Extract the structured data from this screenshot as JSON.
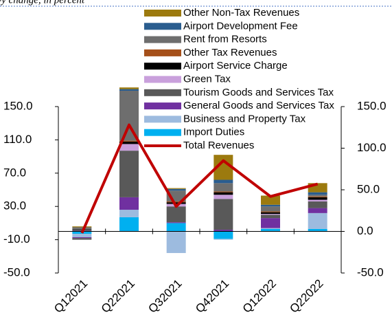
{
  "chart_data": {
    "type": "bar",
    "stacked": true,
    "subtitle": "y-o-y change, in percent",
    "categories": [
      "Q12021",
      "Q22021",
      "Q32021",
      "Q42021",
      "Q12022",
      "Q22022"
    ],
    "series": [
      {
        "name": "Import Duties",
        "color": "#00b0f0",
        "values": [
          -3,
          17,
          10,
          -9,
          3,
          3
        ]
      },
      {
        "name": "Business and Property Tax",
        "color": "#9dbbdf",
        "values": [
          -4,
          9,
          -26,
          -1,
          1,
          19
        ]
      },
      {
        "name": " General Goods and Services Tax",
        "color": "#7030a0",
        "values": [
          -1,
          15,
          1,
          2,
          12,
          6
        ]
      },
      {
        "name": " Tourism Goods and Services Tax",
        "color": "#595959",
        "values": [
          -2,
          56,
          19,
          37,
          4,
          8
        ]
      },
      {
        "name": "Green Tax",
        "color": "#c9a0dc",
        "values": [
          1,
          8,
          3,
          5,
          1,
          2
        ]
      },
      {
        "name": "Airport Service Charge",
        "color": "#000000",
        "values": [
          1,
          3,
          2,
          3,
          2,
          3
        ]
      },
      {
        "name": "Other Tax Revenues",
        "color": "#a5501a",
        "values": [
          0,
          1,
          1,
          1,
          1,
          1
        ]
      },
      {
        "name": "Rent from Resorts",
        "color": "#6e6e6e",
        "values": [
          3,
          60,
          13,
          10,
          6,
          2
        ]
      },
      {
        "name": "Airport Development Fee",
        "color": "#2a5d8f",
        "values": [
          0,
          2,
          2,
          4,
          2,
          3
        ]
      },
      {
        "name": "Other Non-Tax Revenues",
        "color": "#9c7a0e",
        "values": [
          1,
          2,
          1,
          30,
          11,
          11
        ]
      },
      {
        "name": "Total Revenues",
        "color": "#c00000",
        "type": "line",
        "axis": "y2",
        "values": [
          -2,
          128,
          30,
          85,
          42,
          57
        ]
      }
    ],
    "ylim": [
      -50,
      150
    ],
    "yticks": [
      {
        "value": -50,
        "label": "-50.0"
      },
      {
        "value": -10,
        "label": "-10.0"
      },
      {
        "value": 30,
        "label": "30.0"
      },
      {
        "value": 70,
        "label": "70.0"
      },
      {
        "value": 110,
        "label": "110.0"
      },
      {
        "value": 150,
        "label": "150.0"
      }
    ],
    "y2lim": [
      -50,
      150
    ],
    "y2ticks": [
      {
        "value": -50,
        "label": "-50.0"
      },
      {
        "value": 0,
        "label": "0.0"
      },
      {
        "value": 50,
        "label": "50.0"
      },
      {
        "value": 100,
        "label": "100.0"
      },
      {
        "value": 150,
        "label": "150.0"
      }
    ],
    "legend": "top"
  }
}
